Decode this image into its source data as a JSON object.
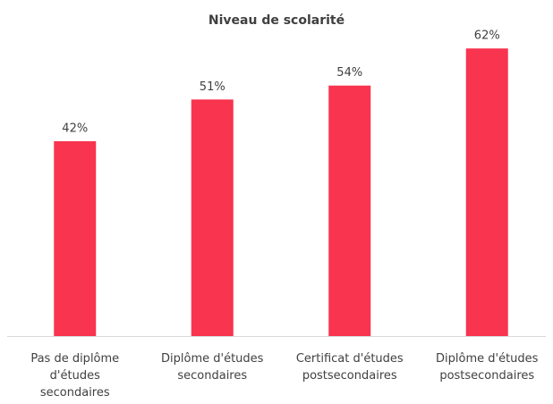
{
  "chart_data": {
    "type": "bar",
    "title": "Niveau de scolarité",
    "categories": [
      "Pas de diplôme d'études secondaires",
      "Diplôme d'études secondaires",
      "Certificat d'études postsecondaires",
      "Diplôme d'études postsecondaires"
    ],
    "values": [
      42,
      51,
      54,
      62
    ],
    "value_labels": [
      "42%",
      "51%",
      "54%",
      "62%"
    ],
    "color": "#f8344f"
  }
}
